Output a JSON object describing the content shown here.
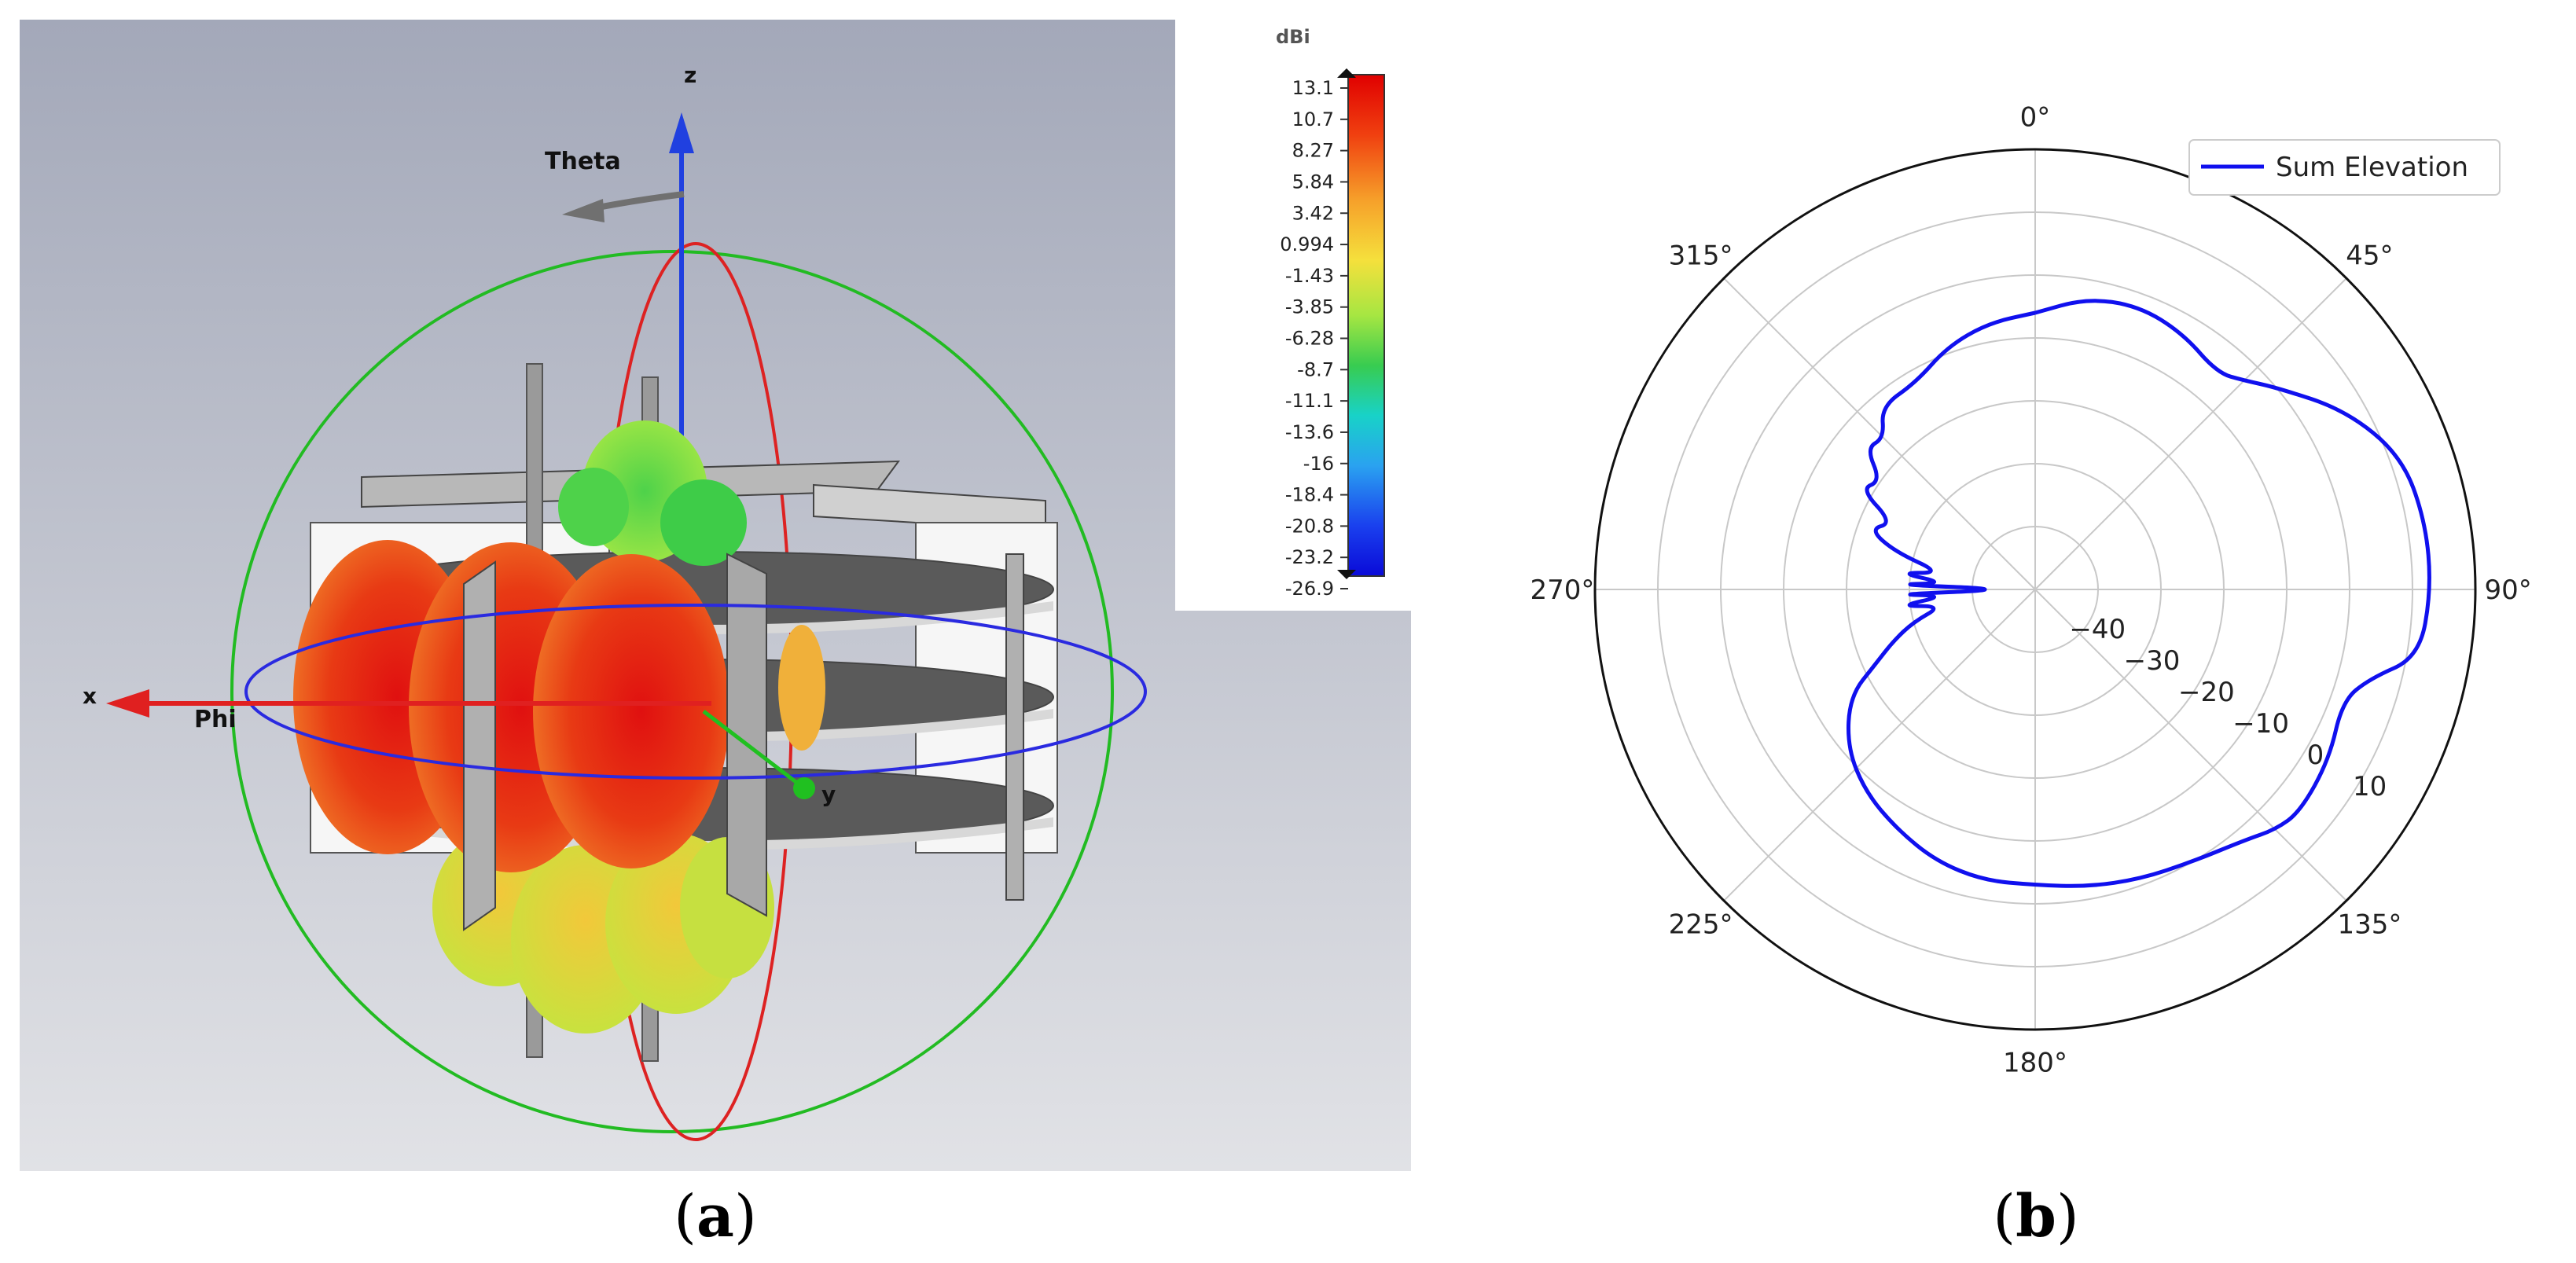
{
  "figure": {
    "captions": [
      {
        "label": "a"
      },
      {
        "label": "b"
      }
    ]
  },
  "chart_data": [
    {
      "type": "other",
      "description_type": "3D far-field radiation pattern (simulation view)",
      "colorbar": {
        "unit": "dBi",
        "ticks": [
          "13.1",
          "10.7",
          "8.27",
          "5.84",
          "3.42",
          "0.994",
          "-1.43",
          "-3.85",
          "-6.28",
          "-8.7",
          "-11.1",
          "-13.6",
          "-16",
          "-18.4",
          "-20.8",
          "-23.2",
          "-26.9"
        ],
        "max": 13.1,
        "min": -26.9,
        "colors": [
          "#e00000",
          "#ee4010",
          "#f27c1e",
          "#f6a82a",
          "#f7d238",
          "#eef04a",
          "#c8ec40",
          "#8ee03a",
          "#4ed44a",
          "#20c88a",
          "#18d0d0",
          "#2aa0f0",
          "#2060f0",
          "#1426e8",
          "#0a10d8"
        ]
      },
      "axes_labels": {
        "z": "z",
        "x": "x",
        "y": "y",
        "theta": "Theta",
        "phi": "Phi"
      },
      "axis_colors": {
        "x": "#e02020",
        "y": "#20c020",
        "z": "#2040e0"
      }
    },
    {
      "type": "line",
      "projection": "polar",
      "theta_zero_location": "top",
      "theta_direction": "clockwise",
      "angle_ticks_deg": [
        0,
        45,
        90,
        135,
        180,
        225,
        270,
        315
      ],
      "angle_tick_labels": [
        "0°",
        "45°",
        "90°",
        "135°",
        "180°",
        "225°",
        "270°",
        "315°"
      ],
      "r_ticks": [
        -40,
        -30,
        -20,
        -10,
        0,
        10
      ],
      "r_tick_labels": [
        "−40",
        "−30",
        "−20",
        "−10",
        "0",
        "10"
      ],
      "rlim": [
        -50,
        20
      ],
      "rlabel_position_deg": 120,
      "grid": true,
      "legend": {
        "position": "top-right",
        "entries": [
          "Sum Elevation"
        ]
      },
      "series": [
        {
          "name": "Sum Elevation",
          "color": "#1010ee",
          "theta_deg": [
            0,
            10,
            20,
            30,
            40,
            45,
            50,
            60,
            70,
            80,
            90,
            100,
            105,
            110,
            120,
            130,
            135,
            140,
            150,
            160,
            170,
            180,
            190,
            200,
            210,
            220,
            230,
            240,
            245,
            250,
            255,
            260,
            263,
            266,
            268,
            270,
            272,
            274,
            277,
            280,
            285,
            290,
            295,
            300,
            305,
            310,
            315,
            320,
            330,
            340,
            350,
            360
          ],
          "r": [
            -6,
            -3,
            -2,
            -3,
            -5,
            -3,
            0,
            7,
            12,
            13,
            13,
            12,
            5,
            2,
            4,
            5,
            4,
            2,
            0,
            -1,
            -2,
            -3,
            -3,
            -4,
            -6,
            -8,
            -11,
            -16,
            -22,
            -26,
            -30,
            -35,
            -28,
            -36,
            -27,
            -47,
            -27,
            -36,
            -28,
            -35,
            -27,
            -22,
            -25,
            -18,
            -20,
            -15,
            -16,
            -12,
            -12,
            -9,
            -7,
            -6
          ]
        }
      ]
    }
  ]
}
